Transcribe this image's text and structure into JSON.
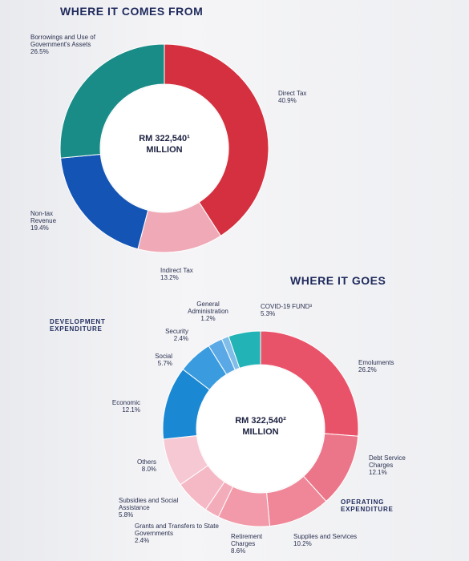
{
  "chart_data": [
    {
      "type": "donut",
      "title": "WHERE IT COMES FROM",
      "center_text": [
        "RM 322,540¹",
        "MILLION"
      ],
      "categories": [
        "Direct Tax",
        "Indirect Tax",
        "Non-tax Revenue",
        "Borrowings and Use of Government's Assets"
      ],
      "values": [
        40.9,
        13.2,
        19.4,
        26.5
      ],
      "value_labels": [
        "40.9%",
        "13.2%",
        "19.4%",
        "26.5%"
      ],
      "colors": [
        "#d4303f",
        "#f0a9b7",
        "#1454b4",
        "#1a8c87"
      ]
    },
    {
      "type": "donut",
      "title": "WHERE IT GOES",
      "center_text": [
        "RM 322,540²",
        "MILLION"
      ],
      "categories": [
        "Emoluments",
        "Debt Service Charges",
        "Supplies and Services",
        "Retirement Charges",
        "Grants and Transfers to State Governments",
        "Subsidies and Social Assistance",
        "Others",
        "Economic",
        "Social",
        "Security",
        "General Administration",
        "COVID-19 FUND³"
      ],
      "values": [
        26.2,
        12.1,
        10.2,
        8.6,
        2.4,
        5.8,
        8.0,
        12.1,
        5.7,
        2.4,
        1.2,
        5.3
      ],
      "value_labels": [
        "26.2%",
        "12.1%",
        "10.2%",
        "8.6%",
        "2.4%",
        "5.8%",
        "8.0%",
        "12.1%",
        "5.7%",
        "2.4%",
        "1.2%",
        "5.3%"
      ],
      "colors": [
        "#e9536a",
        "#ec7689",
        "#ef8798",
        "#f29aa9",
        "#f3adba",
        "#f5b9c6",
        "#f6c8d4",
        "#1a88d2",
        "#3a9cdf",
        "#5aa9e6",
        "#80bde9",
        "#22b3b6"
      ],
      "annotations": [
        "DEVELOPMENT EXPENDITURE",
        "OPERATING EXPENDITURE"
      ]
    }
  ]
}
